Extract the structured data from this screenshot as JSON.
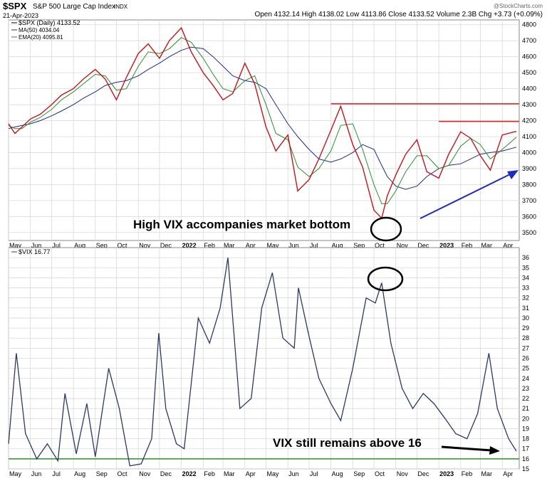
{
  "header": {
    "symbol": "$SPX",
    "name": "S&P 500 Large Cap Index",
    "exchange": "INDX",
    "date": "21-Apr-2023",
    "quote": "Open 4132.14  High 4138.02  Low 4113.86  Close 4133.52  Volume 2.3B  Chg +3.73 (+0.09%)",
    "watermark": "@StockCharts.com"
  },
  "price_panel": {
    "legend": [
      {
        "label": "$SPX (Daily) 4133.52",
        "color": "#000000"
      },
      {
        "label": "MA(50) 4034.04",
        "color": "#1f2b8f"
      },
      {
        "label": "EMA(20) 4095.81",
        "color": "#2e8b2e"
      }
    ],
    "annotation": "High VIX accompanies market bottom"
  },
  "vix_panel": {
    "legend": "$VIX 16.77",
    "annotation": "VIX still remains above 16"
  },
  "chart_data": [
    {
      "type": "line",
      "title": "",
      "series": [
        {
          "name": "$SPX (Daily)"
        },
        {
          "name": "MA(50)"
        },
        {
          "name": "EMA(20)"
        }
      ],
      "x": [
        "2021-05-01",
        "2021-05-10",
        "2021-05-20",
        "2021-06-01",
        "2021-06-15",
        "2021-07-01",
        "2021-07-15",
        "2021-08-01",
        "2021-08-15",
        "2021-09-01",
        "2021-09-15",
        "2021-10-01",
        "2021-10-15",
        "2021-11-01",
        "2021-11-15",
        "2021-12-01",
        "2021-12-15",
        "2022-01-01",
        "2022-01-15",
        "2022-02-01",
        "2022-02-15",
        "2022-03-01",
        "2022-03-15",
        "2022-04-01",
        "2022-04-15",
        "2022-05-01",
        "2022-05-15",
        "2022-06-01",
        "2022-06-15",
        "2022-07-01",
        "2022-07-15",
        "2022-08-01",
        "2022-08-15",
        "2022-09-01",
        "2022-09-15",
        "2022-10-01",
        "2022-10-12",
        "2022-10-20",
        "2022-11-01",
        "2022-11-15",
        "2022-12-01",
        "2022-12-15",
        "2023-01-01",
        "2023-01-15",
        "2023-02-01",
        "2023-02-15",
        "2023-03-01",
        "2023-03-15",
        "2023-04-01",
        "2023-04-21"
      ],
      "close": [
        4180,
        4120,
        4160,
        4210,
        4240,
        4300,
        4360,
        4400,
        4460,
        4520,
        4460,
        4330,
        4470,
        4620,
        4680,
        4590,
        4700,
        4780,
        4630,
        4500,
        4420,
        4330,
        4370,
        4560,
        4430,
        4160,
        4010,
        4110,
        3760,
        3830,
        3960,
        4140,
        4290,
        4050,
        3910,
        3640,
        3590,
        3730,
        3860,
        3990,
        4080,
        3880,
        3840,
        3990,
        4130,
        4090,
        3980,
        3890,
        4110,
        4133
      ],
      "ma50": [
        4150,
        4160,
        4170,
        4180,
        4200,
        4230,
        4260,
        4300,
        4340,
        4380,
        4420,
        4440,
        4450,
        4480,
        4520,
        4560,
        4600,
        4640,
        4660,
        4650,
        4600,
        4540,
        4480,
        4450,
        4440,
        4400,
        4300,
        4180,
        4100,
        4020,
        3960,
        3940,
        3960,
        4000,
        4050,
        4020,
        3920,
        3850,
        3790,
        3770,
        3790,
        3850,
        3900,
        3920,
        3930,
        3960,
        3990,
        4000,
        4010,
        4034
      ],
      "ema20": [
        4170,
        4150,
        4150,
        4190,
        4220,
        4270,
        4330,
        4380,
        4430,
        4490,
        4480,
        4390,
        4400,
        4540,
        4630,
        4620,
        4650,
        4720,
        4690,
        4590,
        4490,
        4400,
        4380,
        4450,
        4480,
        4300,
        4120,
        4080,
        3910,
        3850,
        3900,
        4010,
        4170,
        4180,
        4020,
        3800,
        3680,
        3680,
        3760,
        3880,
        3980,
        3980,
        3900,
        3920,
        4040,
        4090,
        4050,
        3960,
        4020,
        4096
      ],
      "resistance_lines": [
        4305,
        4195
      ],
      "ylim": [
        3450,
        4830
      ],
      "yticks": [
        3500,
        3600,
        3700,
        3800,
        3900,
        4000,
        4100,
        4200,
        4300,
        4400,
        4500,
        4600,
        4700,
        4800
      ],
      "xticks": [
        "May",
        "Jun",
        "Jul",
        "Aug",
        "Sep",
        "Oct",
        "Nov",
        "Dec",
        "2022",
        "Feb",
        "Mar",
        "Apr",
        "May",
        "Jun",
        "Jul",
        "Aug",
        "Sep",
        "Oct",
        "Nov",
        "Dec",
        "2023",
        "Feb",
        "Mar",
        "Apr"
      ],
      "grid": true
    },
    {
      "type": "line",
      "title": "",
      "series": [
        {
          "name": "$VIX"
        }
      ],
      "x": [
        "2021-05-01",
        "2021-05-12",
        "2021-05-25",
        "2021-06-10",
        "2021-06-25",
        "2021-07-10",
        "2021-07-20",
        "2021-08-05",
        "2021-08-20",
        "2021-09-01",
        "2021-09-20",
        "2021-10-05",
        "2021-10-20",
        "2021-11-05",
        "2021-11-20",
        "2021-11-30",
        "2021-12-10",
        "2021-12-25",
        "2022-01-05",
        "2022-01-25",
        "2022-02-10",
        "2022-02-25",
        "2022-03-08",
        "2022-03-25",
        "2022-04-10",
        "2022-04-25",
        "2022-05-10",
        "2022-05-25",
        "2022-06-10",
        "2022-06-16",
        "2022-06-30",
        "2022-07-15",
        "2022-08-01",
        "2022-08-15",
        "2022-09-01",
        "2022-09-20",
        "2022-10-03",
        "2022-10-12",
        "2022-10-25",
        "2022-11-10",
        "2022-11-25",
        "2022-12-10",
        "2022-12-25",
        "2023-01-10",
        "2023-01-25",
        "2023-02-10",
        "2023-02-25",
        "2023-03-13",
        "2023-03-25",
        "2023-04-10",
        "2023-04-21"
      ],
      "values": [
        17.5,
        26.5,
        18.5,
        16.0,
        17.5,
        15.8,
        22.5,
        16.5,
        21.5,
        16.2,
        25.0,
        21.0,
        15.3,
        15.5,
        18.0,
        28.5,
        21.0,
        17.5,
        17.0,
        30.0,
        27.5,
        31.0,
        36.0,
        21.0,
        22.0,
        31.0,
        34.5,
        28.0,
        27.0,
        33.0,
        28.5,
        24.0,
        21.5,
        19.8,
        25.0,
        32.0,
        31.5,
        33.5,
        27.5,
        23.0,
        21.0,
        22.5,
        21.5,
        20.0,
        18.5,
        18.0,
        20.5,
        26.5,
        21.0,
        18.0,
        16.77
      ],
      "reference_line": 16,
      "ylim": [
        15,
        37
      ],
      "yticks": [
        15,
        16,
        17,
        18,
        19,
        20,
        21,
        22,
        23,
        24,
        25,
        26,
        27,
        28,
        29,
        30,
        31,
        32,
        33,
        34,
        35,
        36
      ],
      "xticks": [
        "May",
        "Jun",
        "Jul",
        "Aug",
        "Sep",
        "Oct",
        "Nov",
        "Dec",
        "2022",
        "Feb",
        "Mar",
        "Apr",
        "May",
        "Jun",
        "Jul",
        "Aug",
        "Sep",
        "Oct",
        "Nov",
        "Dec",
        "2023",
        "Feb",
        "Mar",
        "Apr"
      ],
      "grid": true
    }
  ]
}
